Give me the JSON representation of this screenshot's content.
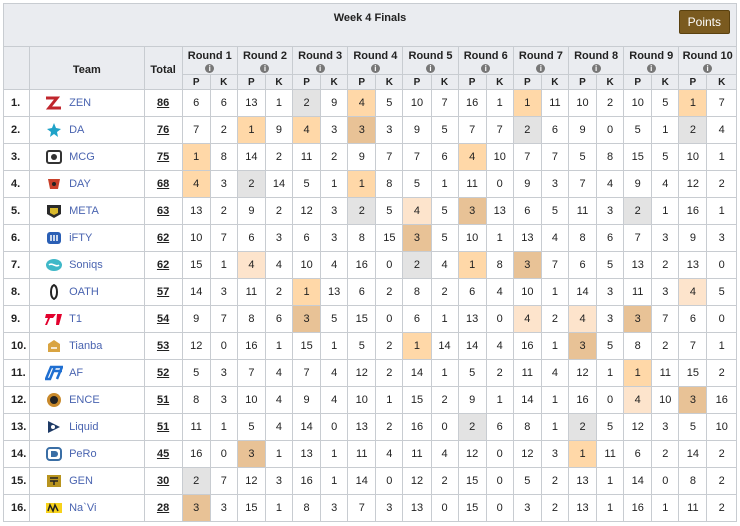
{
  "title": "Week 4 Finals",
  "points_button": "Points",
  "headers": {
    "team": "Team",
    "total": "Total",
    "p": "P",
    "k": "K"
  },
  "rounds": [
    "Round 1",
    "Round 2",
    "Round 3",
    "Round 4",
    "Round 5",
    "Round 6",
    "Round 7",
    "Round 8",
    "Round 9",
    "Round 10"
  ],
  "highlight_colors": {
    "first": "#ffd8a8",
    "second": "#e3e3e3",
    "third": "#e8c296"
  },
  "rows": [
    {
      "rank": "1.",
      "team": "ZEN",
      "logo": "zen-logo",
      "total": "86",
      "cells": [
        [
          "6",
          "6"
        ],
        [
          "13",
          "1"
        ],
        [
          "2",
          "9"
        ],
        [
          "4",
          "5"
        ],
        [
          "10",
          "7"
        ],
        [
          "16",
          "1"
        ],
        [
          "1",
          "11"
        ],
        [
          "10",
          "2"
        ],
        [
          "10",
          "5"
        ],
        [
          "1",
          "7"
        ]
      ],
      "hl": [
        0,
        0,
        2,
        1,
        0,
        0,
        1,
        0,
        0,
        1
      ]
    },
    {
      "rank": "2.",
      "team": "DA",
      "logo": "da-logo",
      "total": "76",
      "cells": [
        [
          "7",
          "2"
        ],
        [
          "1",
          "9"
        ],
        [
          "4",
          "3"
        ],
        [
          "3",
          "3"
        ],
        [
          "9",
          "5"
        ],
        [
          "7",
          "7"
        ],
        [
          "2",
          "6"
        ],
        [
          "9",
          "0"
        ],
        [
          "5",
          "1"
        ],
        [
          "2",
          "4"
        ]
      ],
      "hl": [
        0,
        1,
        1,
        3,
        0,
        0,
        2,
        0,
        0,
        2
      ]
    },
    {
      "rank": "3.",
      "team": "MCG",
      "logo": "mcg-logo",
      "total": "75",
      "cells": [
        [
          "1",
          "8"
        ],
        [
          "14",
          "2"
        ],
        [
          "11",
          "2"
        ],
        [
          "9",
          "7"
        ],
        [
          "7",
          "6"
        ],
        [
          "4",
          "10"
        ],
        [
          "7",
          "7"
        ],
        [
          "5",
          "8"
        ],
        [
          "15",
          "5"
        ],
        [
          "10",
          "1"
        ]
      ],
      "hl": [
        1,
        0,
        0,
        0,
        0,
        1,
        0,
        0,
        0,
        0
      ]
    },
    {
      "rank": "4.",
      "team": "DAY",
      "logo": "day-logo",
      "total": "68",
      "cells": [
        [
          "4",
          "3"
        ],
        [
          "2",
          "14"
        ],
        [
          "5",
          "1"
        ],
        [
          "1",
          "8"
        ],
        [
          "5",
          "1"
        ],
        [
          "11",
          "0"
        ],
        [
          "9",
          "3"
        ],
        [
          "7",
          "4"
        ],
        [
          "9",
          "4"
        ],
        [
          "12",
          "2"
        ]
      ],
      "hl": [
        1,
        2,
        0,
        1,
        0,
        0,
        0,
        0,
        0,
        0
      ]
    },
    {
      "rank": "5.",
      "team": "META",
      "logo": "meta-logo",
      "total": "63",
      "cells": [
        [
          "13",
          "2"
        ],
        [
          "9",
          "2"
        ],
        [
          "12",
          "3"
        ],
        [
          "2",
          "5"
        ],
        [
          "4",
          "5"
        ],
        [
          "3",
          "13"
        ],
        [
          "6",
          "5"
        ],
        [
          "11",
          "3"
        ],
        [
          "2",
          "1"
        ],
        [
          "16",
          "1"
        ]
      ],
      "hl": [
        0,
        0,
        0,
        2,
        4,
        3,
        0,
        0,
        2,
        0
      ]
    },
    {
      "rank": "6.",
      "team": "iFTY",
      "logo": "ifty-logo",
      "total": "62",
      "cells": [
        [
          "10",
          "7"
        ],
        [
          "6",
          "3"
        ],
        [
          "6",
          "3"
        ],
        [
          "8",
          "15"
        ],
        [
          "3",
          "5"
        ],
        [
          "10",
          "1"
        ],
        [
          "13",
          "4"
        ],
        [
          "8",
          "6"
        ],
        [
          "7",
          "3"
        ],
        [
          "9",
          "3"
        ]
      ],
      "hl": [
        0,
        0,
        0,
        0,
        3,
        0,
        0,
        0,
        0,
        0
      ]
    },
    {
      "rank": "7.",
      "team": "Soniqs",
      "logo": "soniqs-logo",
      "total": "62",
      "cells": [
        [
          "15",
          "1"
        ],
        [
          "4",
          "4"
        ],
        [
          "10",
          "4"
        ],
        [
          "16",
          "0"
        ],
        [
          "2",
          "4"
        ],
        [
          "1",
          "8"
        ],
        [
          "3",
          "7"
        ],
        [
          "6",
          "5"
        ],
        [
          "13",
          "2"
        ],
        [
          "13",
          "0"
        ]
      ],
      "hl": [
        0,
        4,
        0,
        0,
        2,
        1,
        3,
        0,
        0,
        0
      ]
    },
    {
      "rank": "8.",
      "team": "OATH",
      "logo": "oath-logo",
      "total": "57",
      "cells": [
        [
          "14",
          "3"
        ],
        [
          "11",
          "2"
        ],
        [
          "1",
          "13"
        ],
        [
          "6",
          "2"
        ],
        [
          "8",
          "2"
        ],
        [
          "6",
          "4"
        ],
        [
          "10",
          "1"
        ],
        [
          "14",
          "3"
        ],
        [
          "11",
          "3"
        ],
        [
          "4",
          "5"
        ]
      ],
      "hl": [
        0,
        0,
        1,
        0,
        0,
        0,
        0,
        0,
        0,
        4
      ]
    },
    {
      "rank": "9.",
      "team": "T1",
      "logo": "t1-logo",
      "total": "54",
      "cells": [
        [
          "9",
          "7"
        ],
        [
          "8",
          "6"
        ],
        [
          "3",
          "5"
        ],
        [
          "15",
          "0"
        ],
        [
          "6",
          "1"
        ],
        [
          "13",
          "0"
        ],
        [
          "4",
          "2"
        ],
        [
          "4",
          "3"
        ],
        [
          "3",
          "7"
        ],
        [
          "6",
          "0"
        ]
      ],
      "hl": [
        0,
        0,
        3,
        0,
        0,
        0,
        4,
        4,
        3,
        0
      ]
    },
    {
      "rank": "10.",
      "team": "Tianba",
      "logo": "tianba-logo",
      "total": "53",
      "cells": [
        [
          "12",
          "0"
        ],
        [
          "16",
          "1"
        ],
        [
          "15",
          "1"
        ],
        [
          "5",
          "2"
        ],
        [
          "1",
          "14"
        ],
        [
          "14",
          "4"
        ],
        [
          "16",
          "1"
        ],
        [
          "3",
          "5"
        ],
        [
          "8",
          "2"
        ],
        [
          "7",
          "1"
        ]
      ],
      "hl": [
        0,
        0,
        0,
        0,
        1,
        0,
        0,
        3,
        0,
        0
      ]
    },
    {
      "rank": "11.",
      "team": "AF",
      "logo": "af-logo",
      "total": "52",
      "cells": [
        [
          "5",
          "3"
        ],
        [
          "7",
          "4"
        ],
        [
          "7",
          "4"
        ],
        [
          "12",
          "2"
        ],
        [
          "14",
          "1"
        ],
        [
          "5",
          "2"
        ],
        [
          "11",
          "4"
        ],
        [
          "12",
          "1"
        ],
        [
          "1",
          "11"
        ],
        [
          "15",
          "2"
        ]
      ],
      "hl": [
        0,
        0,
        0,
        0,
        0,
        0,
        0,
        0,
        1,
        0
      ]
    },
    {
      "rank": "12.",
      "team": "ENCE",
      "logo": "ence-logo",
      "total": "51",
      "cells": [
        [
          "8",
          "3"
        ],
        [
          "10",
          "4"
        ],
        [
          "9",
          "4"
        ],
        [
          "10",
          "1"
        ],
        [
          "15",
          "2"
        ],
        [
          "9",
          "1"
        ],
        [
          "14",
          "1"
        ],
        [
          "16",
          "0"
        ],
        [
          "4",
          "10"
        ],
        [
          "3",
          "16"
        ]
      ],
      "hl": [
        0,
        0,
        0,
        0,
        0,
        0,
        0,
        0,
        4,
        3
      ]
    },
    {
      "rank": "13.",
      "team": "Liquid",
      "logo": "liquid-logo",
      "total": "51",
      "cells": [
        [
          "11",
          "1"
        ],
        [
          "5",
          "4"
        ],
        [
          "14",
          "0"
        ],
        [
          "13",
          "2"
        ],
        [
          "16",
          "0"
        ],
        [
          "2",
          "6"
        ],
        [
          "8",
          "1"
        ],
        [
          "2",
          "5"
        ],
        [
          "12",
          "3"
        ],
        [
          "5",
          "10"
        ]
      ],
      "hl": [
        0,
        0,
        0,
        0,
        0,
        2,
        0,
        2,
        0,
        0
      ]
    },
    {
      "rank": "14.",
      "team": "PeRo",
      "logo": "pero-logo",
      "total": "45",
      "cells": [
        [
          "16",
          "0"
        ],
        [
          "3",
          "1"
        ],
        [
          "13",
          "1"
        ],
        [
          "11",
          "4"
        ],
        [
          "11",
          "4"
        ],
        [
          "12",
          "0"
        ],
        [
          "12",
          "3"
        ],
        [
          "1",
          "11"
        ],
        [
          "6",
          "2"
        ],
        [
          "14",
          "2"
        ]
      ],
      "hl": [
        0,
        3,
        0,
        0,
        0,
        0,
        0,
        1,
        0,
        0
      ]
    },
    {
      "rank": "15.",
      "team": "GEN",
      "logo": "gen-logo",
      "total": "30",
      "cells": [
        [
          "2",
          "7"
        ],
        [
          "12",
          "3"
        ],
        [
          "16",
          "1"
        ],
        [
          "14",
          "0"
        ],
        [
          "12",
          "2"
        ],
        [
          "15",
          "0"
        ],
        [
          "5",
          "2"
        ],
        [
          "13",
          "1"
        ],
        [
          "14",
          "0"
        ],
        [
          "8",
          "2"
        ]
      ],
      "hl": [
        2,
        0,
        0,
        0,
        0,
        0,
        0,
        0,
        0,
        0
      ]
    },
    {
      "rank": "16.",
      "team": "Na`Vi",
      "logo": "navi-logo",
      "total": "28",
      "cells": [
        [
          "3",
          "3"
        ],
        [
          "15",
          "1"
        ],
        [
          "8",
          "3"
        ],
        [
          "7",
          "3"
        ],
        [
          "13",
          "0"
        ],
        [
          "15",
          "0"
        ],
        [
          "3",
          "2"
        ],
        [
          "13",
          "1"
        ],
        [
          "16",
          "1"
        ],
        [
          "11",
          "2"
        ]
      ],
      "hl": [
        3,
        0,
        0,
        0,
        0,
        0,
        0,
        0,
        0,
        0
      ]
    }
  ]
}
